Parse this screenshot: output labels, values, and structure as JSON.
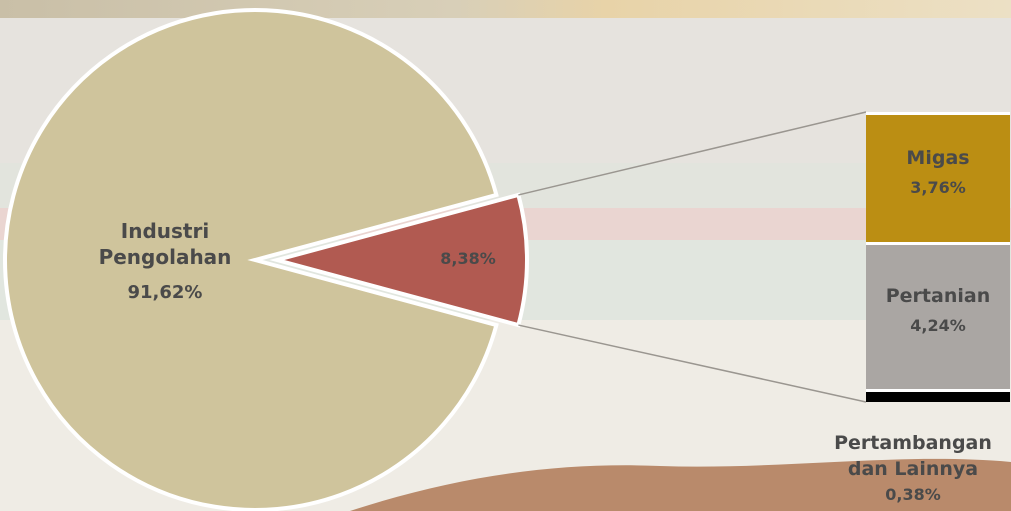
{
  "chart_data": {
    "type": "pie",
    "slices": [
      {
        "label_lines": [
          "Industri",
          "Pengolahan"
        ],
        "value_text": "91,62%",
        "value": 91.62,
        "color": "#cfc49c"
      },
      {
        "label_lines": [],
        "value_text": "8,38%",
        "value": 8.38,
        "color": "#b15a51"
      }
    ],
    "breakdown": [
      {
        "label_lines": [
          "Migas"
        ],
        "value_text": "3,76%",
        "value": 3.76,
        "color": "#bb8e13"
      },
      {
        "label_lines": [
          "Pertanian"
        ],
        "value_text": "4,24%",
        "value": 4.24,
        "color": "#aaa6a3"
      },
      {
        "label_lines": [
          "Pertambangan",
          "dan Lainnya"
        ],
        "value_text": "0,38%",
        "value": 0.38,
        "color": "#000000"
      }
    ]
  }
}
